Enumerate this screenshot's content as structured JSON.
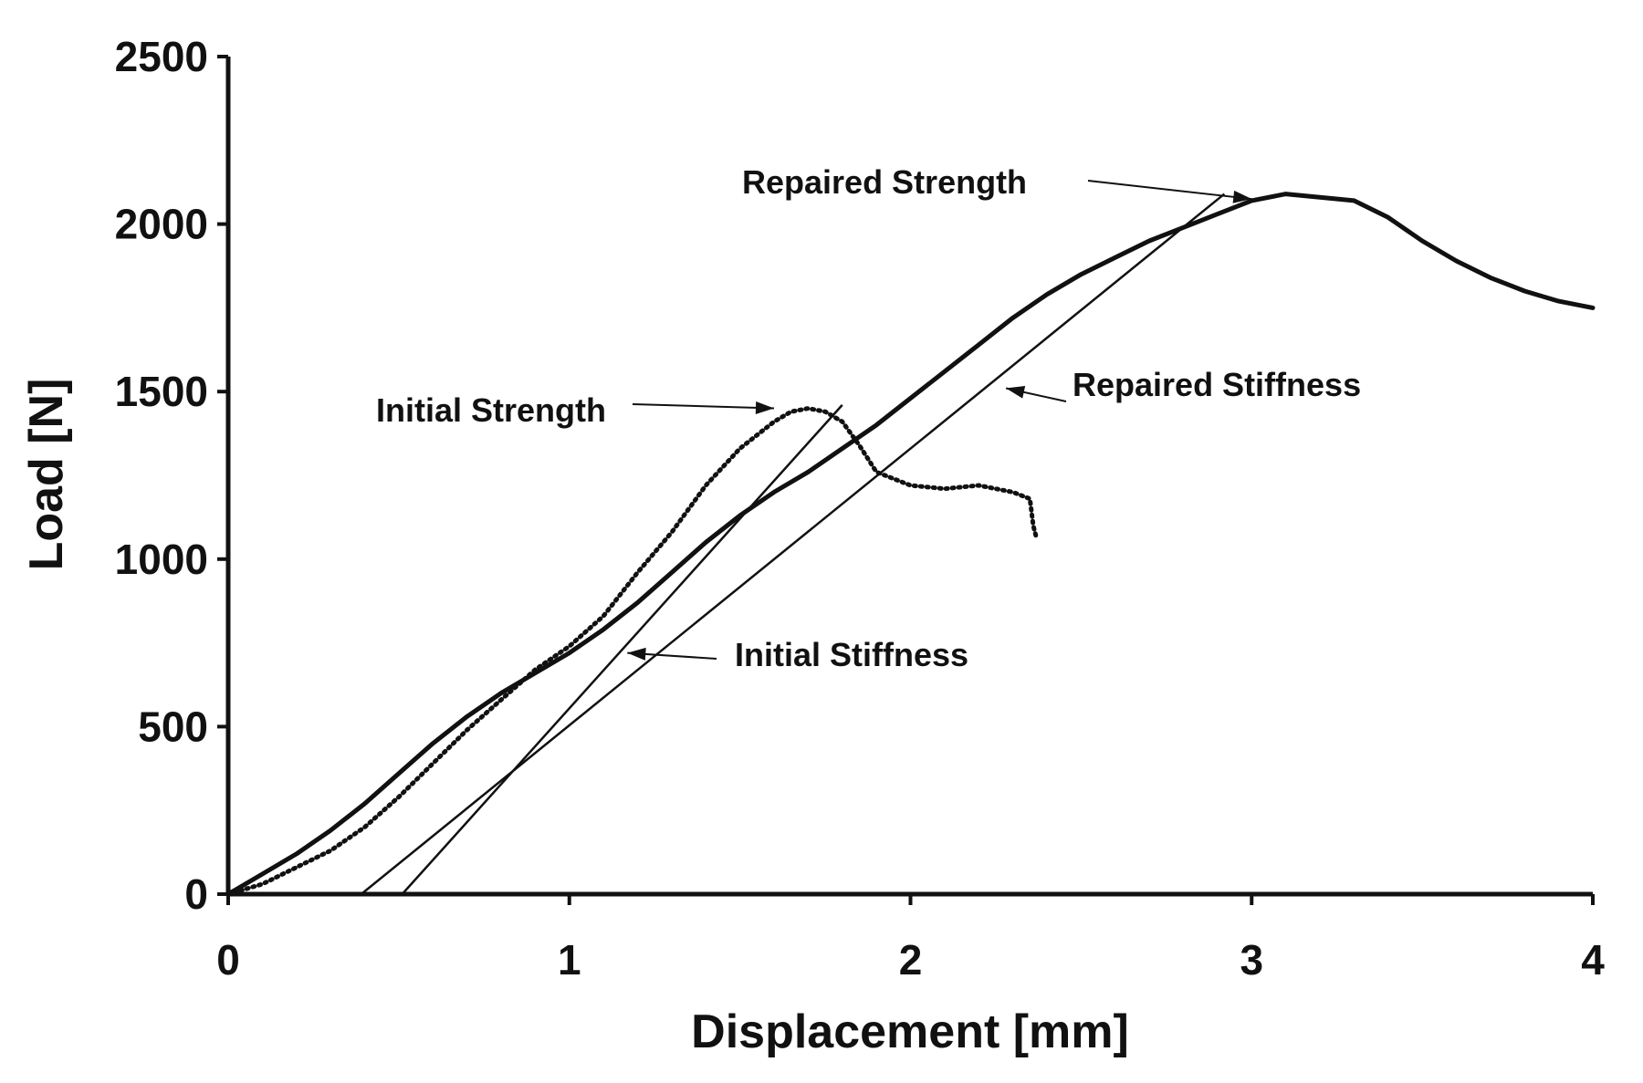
{
  "chart_data": {
    "type": "line",
    "xlabel": "Displacement [mm]",
    "ylabel": "Load [N]",
    "xlim": [
      0,
      4
    ],
    "ylim": [
      0,
      2500
    ],
    "xticks": [
      0,
      1,
      2,
      3,
      4
    ],
    "yticks": [
      0,
      500,
      1000,
      1500,
      2000,
      2500
    ],
    "grid": false,
    "series": [
      {
        "style": "dotted",
        "x": [
          0,
          0.1,
          0.2,
          0.3,
          0.4,
          0.5,
          0.6,
          0.7,
          0.8,
          0.9,
          1.0,
          1.1,
          1.2,
          1.3,
          1.4,
          1.5,
          1.6,
          1.65,
          1.7,
          1.75,
          1.8,
          1.85,
          1.9,
          2.0,
          2.1,
          2.2,
          2.3,
          2.35,
          2.36,
          2.37
        ],
        "y": [
          0,
          30,
          80,
          130,
          200,
          290,
          390,
          490,
          580,
          670,
          740,
          830,
          960,
          1080,
          1220,
          1330,
          1410,
          1440,
          1450,
          1440,
          1410,
          1340,
          1260,
          1220,
          1210,
          1220,
          1200,
          1180,
          1100,
          1060
        ]
      },
      {
        "style": "solid",
        "x": [
          0,
          0.1,
          0.2,
          0.3,
          0.4,
          0.5,
          0.6,
          0.7,
          0.8,
          0.9,
          1.0,
          1.1,
          1.2,
          1.3,
          1.4,
          1.5,
          1.6,
          1.7,
          1.8,
          1.9,
          2.0,
          2.1,
          2.2,
          2.3,
          2.4,
          2.5,
          2.6,
          2.7,
          2.8,
          2.9,
          3.0,
          3.1,
          3.2,
          3.3,
          3.4,
          3.5,
          3.6,
          3.7,
          3.8,
          3.9,
          4.0
        ],
        "y": [
          0,
          60,
          120,
          190,
          270,
          360,
          450,
          530,
          600,
          660,
          720,
          790,
          870,
          960,
          1050,
          1130,
          1200,
          1260,
          1330,
          1400,
          1480,
          1560,
          1640,
          1720,
          1790,
          1850,
          1900,
          1950,
          1990,
          2030,
          2070,
          2090,
          2080,
          2070,
          2020,
          1950,
          1890,
          1840,
          1800,
          1770,
          1750
        ]
      }
    ],
    "fit_lines": [
      {
        "x": [
          0.51,
          1.8
        ],
        "y": [
          0,
          1460
        ]
      },
      {
        "x": [
          0.39,
          2.92
        ],
        "y": [
          0,
          2090
        ]
      }
    ],
    "annotations": [
      {
        "text": "Repaired Strength"
      },
      {
        "text": "Repaired Stiffness"
      },
      {
        "text": "Initial Strength"
      },
      {
        "text": "Initial Stiffness"
      }
    ]
  }
}
